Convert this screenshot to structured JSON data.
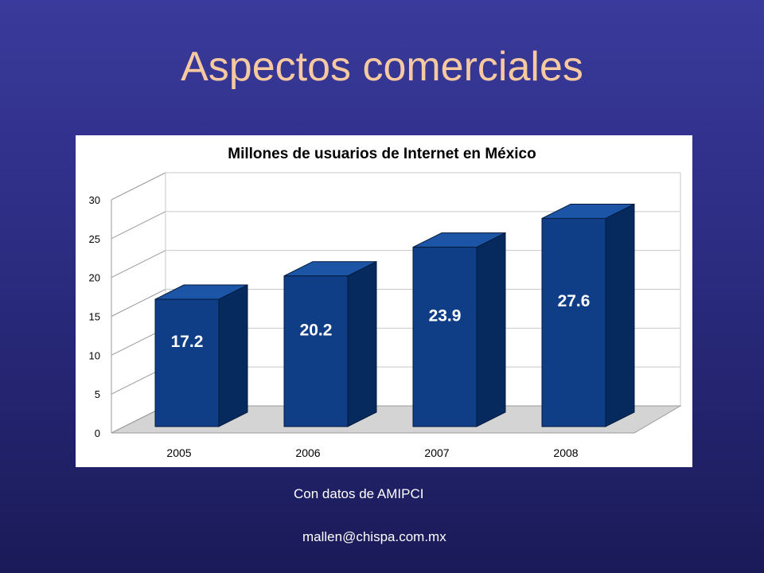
{
  "slide": {
    "title": "Aspectos comerciales",
    "source_note": "Con datos de AMIPCI",
    "footer_email": "mallen@chispa.com.mx",
    "title_color": "#f7c9a0"
  },
  "chart_data": {
    "type": "bar",
    "title": "Millones de usuarios de Internet en México",
    "xlabel": "",
    "ylabel": "",
    "categories": [
      "2005",
      "2006",
      "2007",
      "2008"
    ],
    "values": [
      17.2,
      20.2,
      23.9,
      27.6
    ],
    "data_labels": [
      "17.2",
      "20.2",
      "23.9",
      "27.6"
    ],
    "yticks": [
      "0",
      "5",
      "10",
      "15",
      "20",
      "25",
      "30"
    ],
    "ylim": [
      0,
      30
    ],
    "style": "3d",
    "grid": true,
    "colors": {
      "bar_front": "#0f3d86",
      "bar_side": "#072a5e",
      "bar_top": "#1c55a6",
      "floor": "#d4d4d4"
    }
  }
}
